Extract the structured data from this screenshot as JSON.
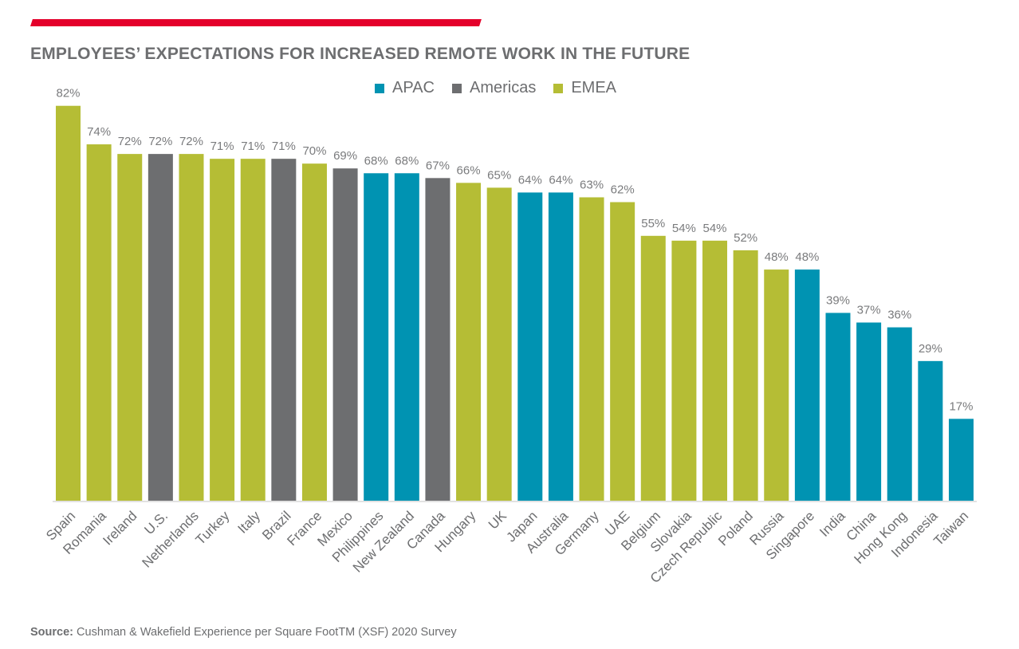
{
  "header": {
    "title": "EMPLOYEES’ EXPECTATIONS FOR INCREASED REMOTE WORK IN THE FUTURE",
    "accent_color": "#e4002b"
  },
  "legend": [
    {
      "name": "APAC",
      "color": "#0093b2"
    },
    {
      "name": "Americas",
      "color": "#6d6e70"
    },
    {
      "name": "EMEA",
      "color": "#b5bd35"
    }
  ],
  "footer": {
    "source_label": "Source:",
    "source_text": " Cushman & Wakefield Experience per Square FootTM  (XSF) 2020 Survey"
  },
  "chart_data": {
    "type": "bar",
    "title": "EMPLOYEES’ EXPECTATIONS FOR INCREASED REMOTE WORK IN THE FUTURE",
    "xlabel": "",
    "ylabel": "",
    "ylim": [
      0,
      100
    ],
    "grid": false,
    "legend_position": "top-center",
    "value_suffix": "%",
    "categories": [
      "Spain",
      "Romania",
      "Ireland",
      "U.S.",
      "Netherlands",
      "Turkey",
      "Italy",
      "Brazil",
      "France",
      "Mexico",
      "Philippines",
      "New Zealand",
      "Canada",
      "Hungary",
      "UK",
      "Japan",
      "Australia",
      "Germany",
      "UAE",
      "Belgium",
      "Slovakia",
      "Czech Republic",
      "Poland",
      "Russia",
      "Singapore",
      "India",
      "China",
      "Hong Kong",
      "Indonesia",
      "Taiwan"
    ],
    "values": [
      82,
      74,
      72,
      72,
      72,
      71,
      71,
      71,
      70,
      69,
      68,
      68,
      67,
      66,
      65,
      64,
      64,
      63,
      62,
      55,
      54,
      54,
      52,
      48,
      48,
      39,
      37,
      36,
      29,
      17
    ],
    "regions": [
      "EMEA",
      "EMEA",
      "EMEA",
      "Americas",
      "EMEA",
      "EMEA",
      "EMEA",
      "Americas",
      "EMEA",
      "Americas",
      "APAC",
      "APAC",
      "Americas",
      "EMEA",
      "EMEA",
      "APAC",
      "APAC",
      "EMEA",
      "EMEA",
      "EMEA",
      "EMEA",
      "EMEA",
      "EMEA",
      "EMEA",
      "APAC",
      "APAC",
      "APAC",
      "APAC",
      "APAC",
      "APAC"
    ],
    "data_labels": [
      "82%",
      "74%",
      "72%",
      "72%",
      "72%",
      "71%",
      "71%",
      "71%",
      "70%",
      "69%",
      "68%",
      "68%",
      "67%",
      "66%",
      "65%",
      "64%",
      "64%",
      "63%",
      "62%",
      "55%",
      "54%",
      "54%",
      "52%",
      "48%",
      "48%",
      "39%",
      "37%",
      "36%",
      "29%",
      "17%"
    ]
  }
}
